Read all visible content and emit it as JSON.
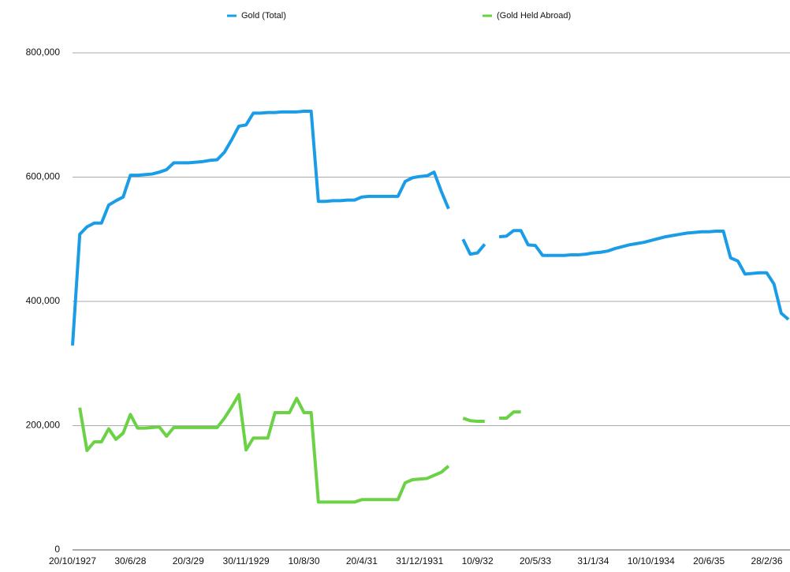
{
  "chart_data": {
    "type": "line",
    "categories": [
      "20/10/1927",
      null,
      null,
      null,
      null,
      null,
      null,
      null,
      "30/6/28",
      null,
      null,
      null,
      null,
      null,
      null,
      null,
      "20/3/29",
      null,
      null,
      null,
      null,
      null,
      null,
      null,
      "30/11/1929",
      null,
      null,
      null,
      null,
      null,
      null,
      null,
      "10/8/30",
      null,
      null,
      null,
      null,
      null,
      null,
      null,
      "20/4/31",
      null,
      null,
      null,
      null,
      null,
      null,
      null,
      "31/12/1931",
      null,
      null,
      null,
      null,
      null,
      null,
      null,
      "10/9/32",
      null,
      null,
      null,
      null,
      null,
      null,
      null,
      "20/5/33",
      null,
      null,
      null,
      null,
      null,
      null,
      null,
      "31/1/34",
      null,
      null,
      null,
      null,
      null,
      null,
      null,
      "10/10/1934",
      null,
      null,
      null,
      null,
      null,
      null,
      null,
      "20/6/35",
      null,
      null,
      null,
      null,
      null,
      null,
      null,
      "28/2/36",
      null,
      null,
      null
    ],
    "series": [
      {
        "name": "Gold (Total)",
        "color": "#1a9de6",
        "values": [
          329000,
          508000,
          520000,
          526000,
          526000,
          555000,
          562000,
          568000,
          603000,
          603000,
          604000,
          605000,
          608000,
          612000,
          623000,
          623000,
          623000,
          624000,
          625000,
          627000,
          628000,
          640000,
          660000,
          682000,
          684000,
          703000,
          703000,
          704000,
          704000,
          705000,
          705000,
          705000,
          706000,
          706000,
          561000,
          561000,
          562000,
          562000,
          563000,
          563000,
          568000,
          569000,
          569000,
          569000,
          569000,
          569000,
          593000,
          599000,
          601000,
          602000,
          608000,
          577000,
          549000,
          null,
          500000,
          476000,
          478000,
          492000,
          null,
          504000,
          505000,
          514000,
          514000,
          491000,
          490000,
          474000,
          474000,
          474000,
          474000,
          475000,
          475000,
          476000,
          478000,
          479000,
          481000,
          485000,
          488000,
          491000,
          493000,
          495000,
          498000,
          501000,
          504000,
          506000,
          508000,
          510000,
          511000,
          512000,
          512000,
          513000,
          513000,
          470000,
          465000,
          444000,
          445000,
          446000,
          446000,
          428000,
          381000,
          371000
        ]
      },
      {
        "name": "(Gold Held Abroad)",
        "color": "#6ad244",
        "values": [
          null,
          229000,
          160000,
          174000,
          174000,
          195000,
          178000,
          188000,
          218000,
          196000,
          196000,
          197000,
          198000,
          183000,
          197000,
          197000,
          197000,
          197000,
          197000,
          197000,
          197000,
          212000,
          230000,
          250000,
          161000,
          180000,
          180000,
          180000,
          221000,
          221000,
          221000,
          244000,
          221000,
          221000,
          77000,
          77000,
          77000,
          77000,
          77000,
          77000,
          81000,
          81000,
          81000,
          81000,
          81000,
          81000,
          108000,
          113000,
          114000,
          115000,
          120000,
          125000,
          135000,
          null,
          212000,
          208000,
          207000,
          207000,
          null,
          212000,
          212000,
          222000,
          222000,
          null,
          null,
          null,
          null,
          null,
          null,
          null,
          null,
          null,
          null,
          null,
          null,
          null,
          null,
          null,
          null,
          null,
          null,
          null,
          null,
          null,
          null,
          null,
          null,
          null,
          null,
          null,
          null,
          null,
          null,
          null,
          null,
          null,
          null,
          null,
          null,
          null
        ]
      }
    ],
    "ylim": [
      0,
      800000
    ],
    "yticks": [
      0,
      {
        "value": 200000,
        "label": "200,000"
      },
      {
        "value": 400000,
        "label": "400,000"
      },
      {
        "value": 600000,
        "label": "600,000"
      },
      {
        "value": 800000,
        "label": "800,000"
      }
    ],
    "grid": true
  }
}
